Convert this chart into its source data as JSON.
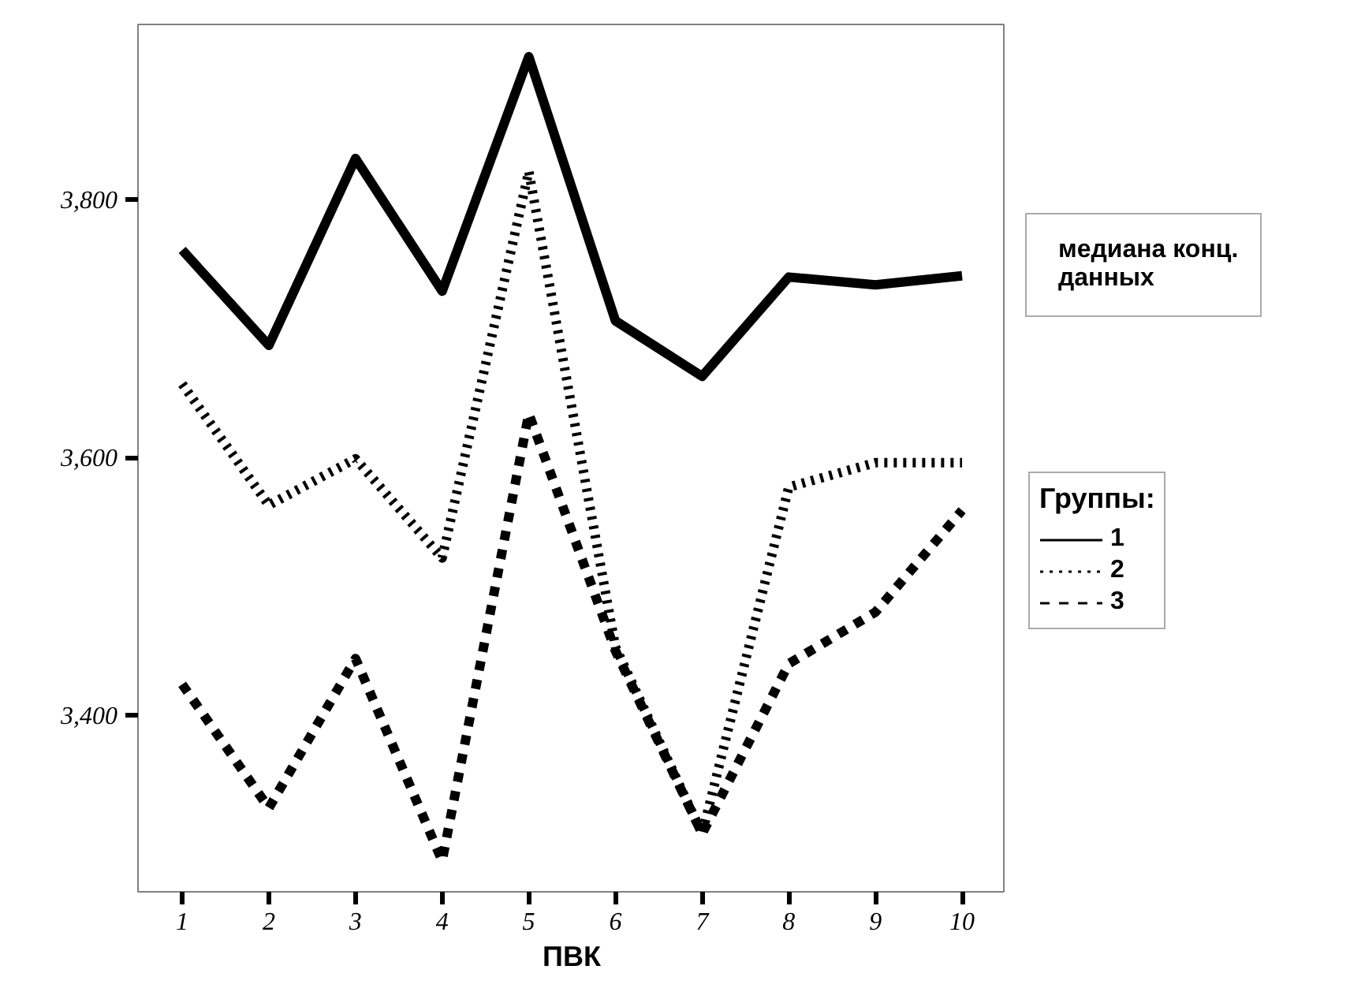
{
  "chart_data": {
    "type": "line",
    "xlabel": "ПВК",
    "x": [
      1,
      2,
      3,
      4,
      5,
      6,
      7,
      8,
      9,
      10
    ],
    "xlim": [
      0.49,
      10.5
    ],
    "xticks": [
      1,
      2,
      3,
      4,
      5,
      6,
      7,
      8,
      9,
      10
    ],
    "ylim": [
      3263,
      3936
    ],
    "yticks": [
      {
        "value": 3400,
        "label": "3,400"
      },
      {
        "value": 3600,
        "label": "3,600"
      },
      {
        "value": 3800,
        "label": "3,800"
      }
    ],
    "legend_title": "Группы:",
    "legend": "right",
    "grid": false,
    "annotations": [
      "медиана конц. данных"
    ],
    "series": [
      {
        "name": "1",
        "color": "#000000",
        "line_style": "solid",
        "values": [
          3761,
          3687,
          3832,
          3729,
          3911,
          3706,
          3663,
          3740,
          3734,
          3741
        ]
      },
      {
        "name": "2",
        "color": "#000000",
        "line_style": "dotted",
        "values": [
          3657,
          3563,
          3599,
          3522,
          3822,
          3453,
          3308,
          3577,
          3596,
          3596
        ]
      },
      {
        "name": "3",
        "color": "#000000",
        "line_style": "dashed",
        "values": [
          3424,
          3328,
          3444,
          3287,
          3634,
          3450,
          3308,
          3440,
          3480,
          3559
        ]
      }
    ]
  }
}
